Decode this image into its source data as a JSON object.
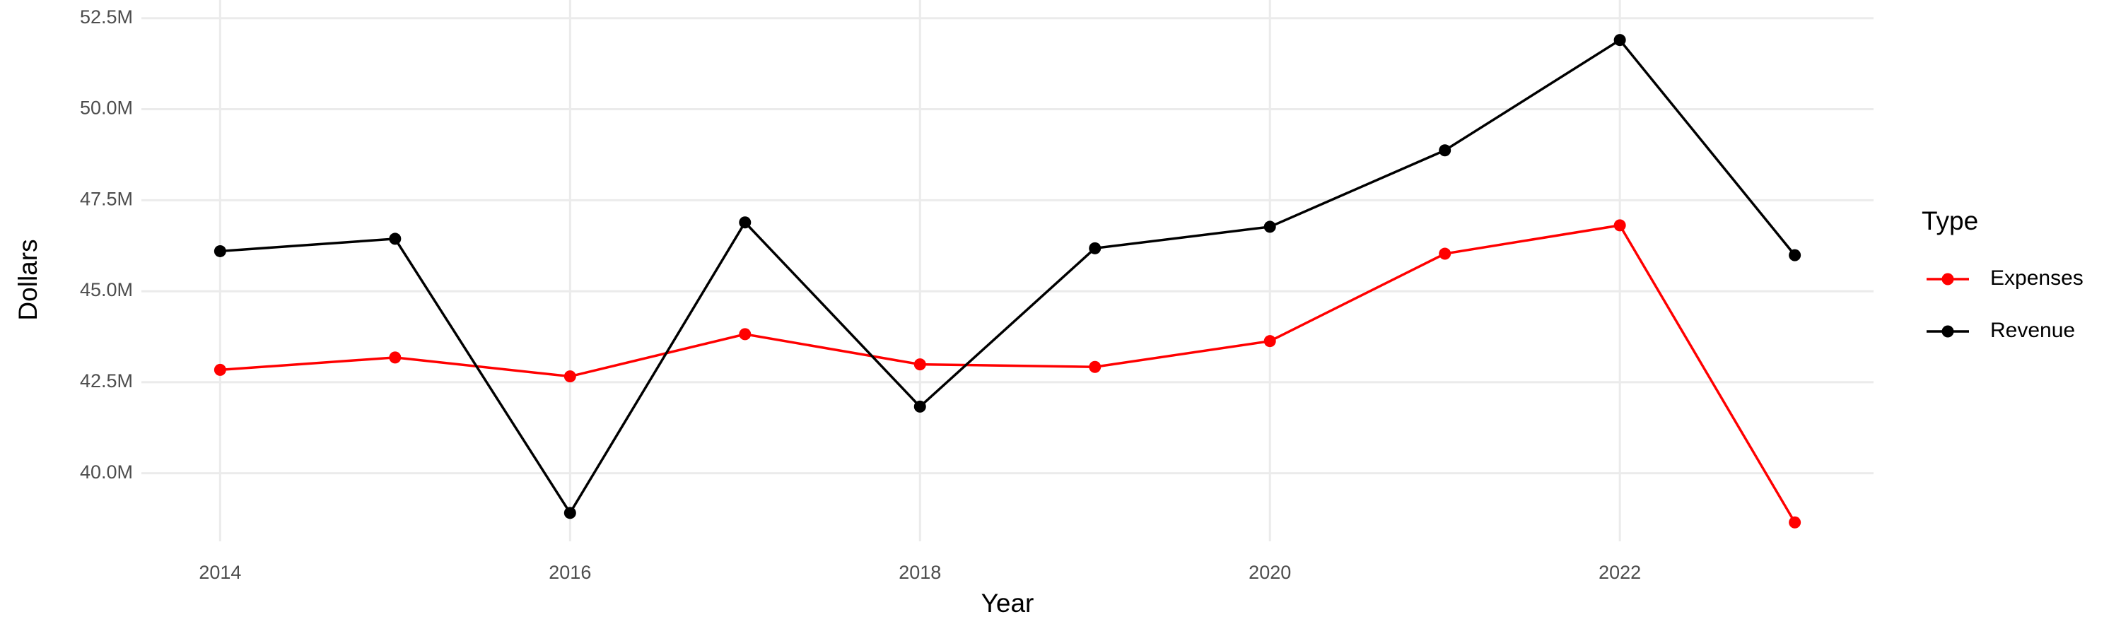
{
  "chart_data": {
    "type": "line",
    "x_label": "Year",
    "y_label": "Dollars",
    "legend_title": "Type",
    "legend_position": "right",
    "grid": true,
    "x": [
      2014,
      2015,
      2016,
      2017,
      2018,
      2019,
      2020,
      2021,
      2022,
      2023
    ],
    "series": [
      {
        "name": "Expenses",
        "color": "#ff0000",
        "values": [
          42840000,
          43180000,
          42660000,
          43820000,
          42990000,
          42920000,
          43630000,
          46030000,
          46810000,
          38650000
        ]
      },
      {
        "name": "Revenue",
        "color": "#000000",
        "values": [
          46100000,
          46440000,
          38910000,
          46890000,
          41830000,
          46180000,
          46770000,
          48870000,
          51900000,
          45990000
        ]
      }
    ],
    "xlim": [
      2013.55,
      2023.45
    ],
    "xticks": [
      2014,
      2016,
      2018,
      2020,
      2022
    ],
    "ylim": [
      38130000,
      53000000
    ],
    "yticks": [
      {
        "value": 40000000,
        "label": "40.0M"
      },
      {
        "value": 42500000,
        "label": "42.5M"
      },
      {
        "value": 45000000,
        "label": "45.0M"
      },
      {
        "value": 47500000,
        "label": "47.5M"
      },
      {
        "value": 50000000,
        "label": "50.0M"
      },
      {
        "value": 52500000,
        "label": "52.5M"
      }
    ]
  }
}
